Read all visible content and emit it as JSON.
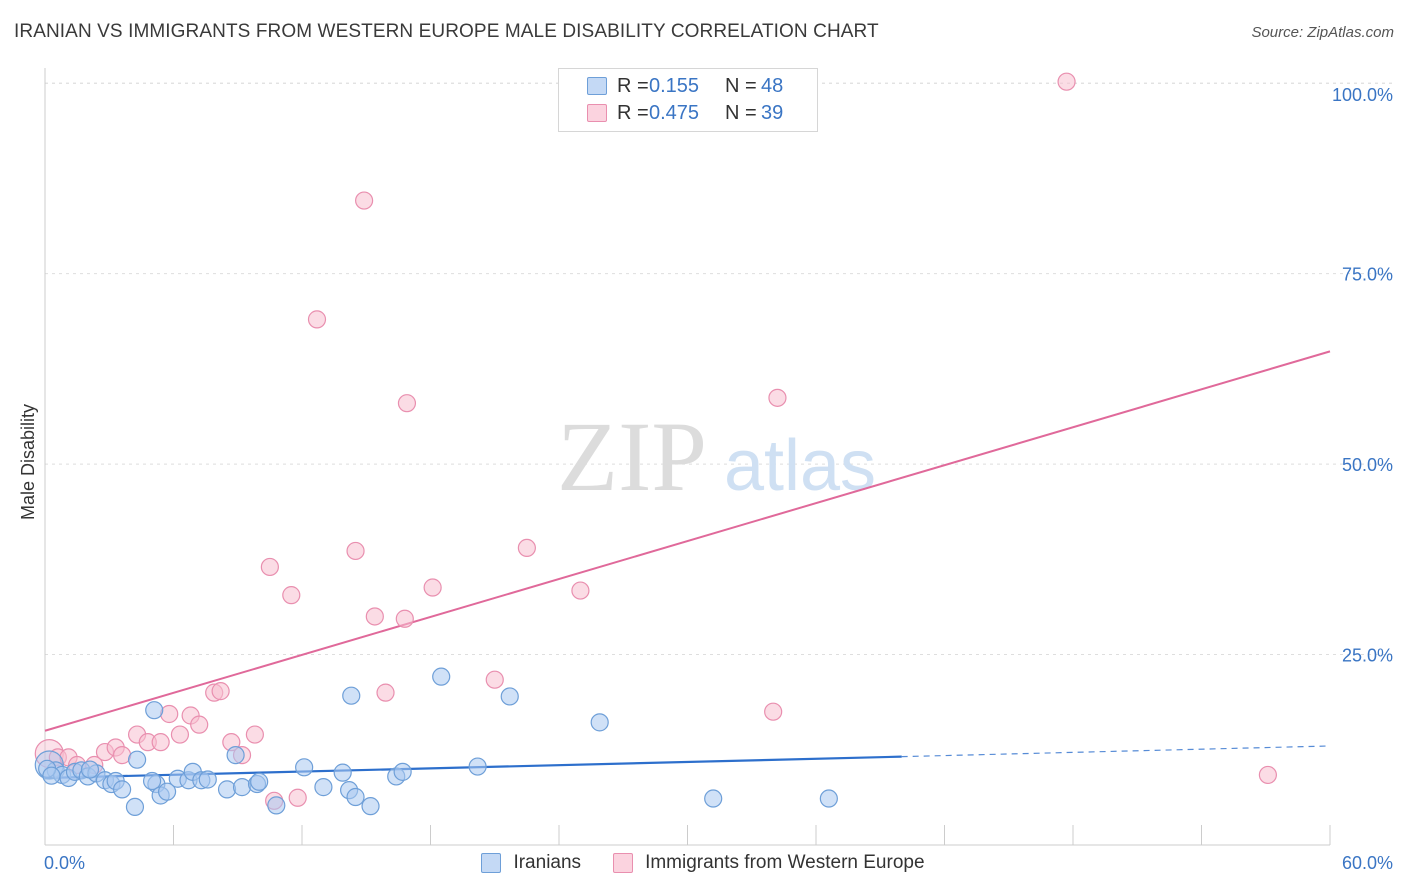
{
  "header": {
    "title": "IRANIAN VS IMMIGRANTS FROM WESTERN EUROPE MALE DISABILITY CORRELATION CHART",
    "source": "Source: ZipAtlas.com"
  },
  "legend": {
    "rows": [
      {
        "r_label": "R =",
        "r_value": "0.155",
        "n_label": "N =",
        "n_value": "48"
      },
      {
        "r_label": "R =",
        "r_value": "0.475",
        "n_label": "N =",
        "n_value": "39"
      }
    ]
  },
  "watermark": {
    "zip": "ZIP",
    "atlas": "atlas"
  },
  "colors": {
    "blue_fill": "#a9c8f0",
    "blue_stroke": "#6e9fd8",
    "blue_line": "#2d6fcc",
    "pink_fill": "#f7bfd0",
    "pink_stroke": "#e98faf",
    "pink_line": "#e0699a",
    "axis_text": "#3a75c4"
  },
  "chart_data": {
    "type": "scatter",
    "title": "IRANIAN VS IMMIGRANTS FROM WESTERN EUROPE MALE DISABILITY CORRELATION CHART",
    "xlabel": "",
    "ylabel": "Male Disability",
    "xlim": [
      0,
      60
    ],
    "ylim": [
      0,
      102
    ],
    "x_tick_labels": [
      "0.0%",
      "60.0%"
    ],
    "y_tick_labels": [
      "25.0%",
      "50.0%",
      "75.0%",
      "100.0%"
    ],
    "y_ticks": [
      25,
      50,
      75,
      100
    ],
    "grid": true,
    "series": [
      {
        "name": "Iranians",
        "r": 0.155,
        "n": 48,
        "trend": {
          "x0": 0,
          "y0": 8.8,
          "x1": 40,
          "y1": 11.6,
          "dashed_to_x": 60,
          "dashed_to_y": 13.0
        },
        "points": [
          [
            0.2,
            10.5
          ],
          [
            0.5,
            9.8
          ],
          [
            0.8,
            9.2
          ],
          [
            1.1,
            8.8
          ],
          [
            1.4,
            9.6
          ],
          [
            1.7,
            9.8
          ],
          [
            2.0,
            9.0
          ],
          [
            2.4,
            9.4
          ],
          [
            2.8,
            8.5
          ],
          [
            3.1,
            8.0
          ],
          [
            3.3,
            8.4
          ],
          [
            3.6,
            7.3
          ],
          [
            4.3,
            11.2
          ],
          [
            4.2,
            5.0
          ],
          [
            5.2,
            8.0
          ],
          [
            5.0,
            8.4
          ],
          [
            5.1,
            17.7
          ],
          [
            5.4,
            6.5
          ],
          [
            5.7,
            7.0
          ],
          [
            6.2,
            8.7
          ],
          [
            6.7,
            8.5
          ],
          [
            6.9,
            9.6
          ],
          [
            7.3,
            8.5
          ],
          [
            7.6,
            8.6
          ],
          [
            8.5,
            7.3
          ],
          [
            8.9,
            11.8
          ],
          [
            9.2,
            7.6
          ],
          [
            9.9,
            8.0
          ],
          [
            10.0,
            8.3
          ],
          [
            10.8,
            5.2
          ],
          [
            12.1,
            10.2
          ],
          [
            13.0,
            7.6
          ],
          [
            13.9,
            9.5
          ],
          [
            14.3,
            19.6
          ],
          [
            14.2,
            7.2
          ],
          [
            14.5,
            6.3
          ],
          [
            15.2,
            5.1
          ],
          [
            16.4,
            9.0
          ],
          [
            16.7,
            9.6
          ],
          [
            18.5,
            22.1
          ],
          [
            20.2,
            10.3
          ],
          [
            21.7,
            19.5
          ],
          [
            25.9,
            16.1
          ],
          [
            31.2,
            6.1
          ],
          [
            36.6,
            6.1
          ],
          [
            0.1,
            10.0
          ],
          [
            0.3,
            9.1
          ],
          [
            2.1,
            9.9
          ]
        ]
      },
      {
        "name": "Immigrants from Western Europe",
        "r": 0.475,
        "n": 39,
        "trend": {
          "x0": 0,
          "y0": 15.0,
          "x1": 60,
          "y1": 64.8
        },
        "points": [
          [
            0.2,
            12.0
          ],
          [
            0.6,
            11.5
          ],
          [
            1.1,
            11.5
          ],
          [
            1.5,
            10.5
          ],
          [
            2.3,
            10.5
          ],
          [
            2.8,
            12.2
          ],
          [
            3.3,
            12.8
          ],
          [
            3.6,
            11.8
          ],
          [
            4.3,
            14.5
          ],
          [
            4.8,
            13.5
          ],
          [
            5.4,
            13.5
          ],
          [
            5.8,
            17.2
          ],
          [
            6.3,
            14.5
          ],
          [
            6.8,
            17.0
          ],
          [
            7.2,
            15.8
          ],
          [
            7.9,
            20.0
          ],
          [
            8.2,
            20.2
          ],
          [
            8.7,
            13.5
          ],
          [
            9.2,
            11.8
          ],
          [
            9.8,
            14.5
          ],
          [
            10.5,
            36.5
          ],
          [
            10.7,
            5.8
          ],
          [
            11.5,
            32.8
          ],
          [
            11.8,
            6.2
          ],
          [
            12.7,
            69.0
          ],
          [
            14.5,
            38.6
          ],
          [
            14.9,
            84.6
          ],
          [
            15.4,
            30.0
          ],
          [
            15.9,
            20.0
          ],
          [
            16.8,
            29.7
          ],
          [
            16.9,
            58.0
          ],
          [
            18.1,
            33.8
          ],
          [
            21.0,
            21.7
          ],
          [
            22.5,
            39.0
          ],
          [
            25.0,
            33.4
          ],
          [
            34.0,
            17.5
          ],
          [
            34.2,
            58.7
          ],
          [
            47.7,
            100.2
          ],
          [
            57.1,
            9.2
          ]
        ]
      }
    ]
  },
  "bottom_legend": {
    "items": [
      "Iranians",
      "Immigrants from Western Europe"
    ]
  }
}
